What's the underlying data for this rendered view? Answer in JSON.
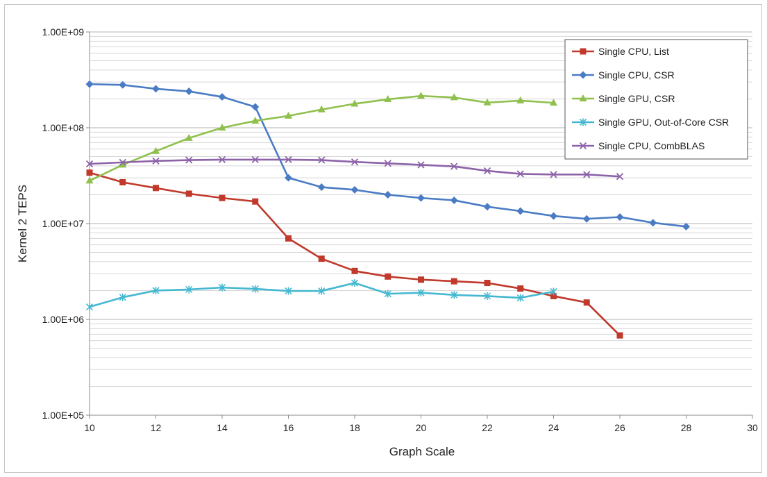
{
  "chart_data": {
    "type": "line",
    "xlabel": "Graph Scale",
    "ylabel": "Kernel 2 TEPS",
    "xlim": [
      10,
      30
    ],
    "ylim": [
      100000,
      1000000000
    ],
    "yscale": "log",
    "grid": true,
    "legend_position": "top-right",
    "x_ticks": [
      "10",
      "12",
      "14",
      "16",
      "18",
      "20",
      "22",
      "24",
      "26",
      "28",
      "30"
    ],
    "y_ticks": [
      "1.00E+05",
      "1.00E+06",
      "1.00E+07",
      "1.00E+08",
      "1.00E+09"
    ],
    "series": [
      {
        "name": "Single CPU, List",
        "color": "#c0392b",
        "marker": "square",
        "x": [
          10,
          11,
          12,
          13,
          14,
          15,
          16,
          17,
          18,
          19,
          20,
          21,
          22,
          23,
          24,
          25,
          26
        ],
        "y": [
          34000000,
          27000000,
          23500000,
          20500000,
          18500000,
          17000000,
          7000000,
          4300000,
          3200000,
          2800000,
          2600000,
          2500000,
          2400000,
          2100000,
          1750000,
          1500000,
          680000
        ]
      },
      {
        "name": "Single CPU, CSR",
        "color": "#4a7cc4",
        "marker": "diamond",
        "x": [
          10,
          11,
          12,
          13,
          14,
          15,
          16,
          17,
          18,
          19,
          20,
          21,
          22,
          23,
          24,
          25,
          26,
          27,
          28
        ],
        "y": [
          285000000,
          280000000,
          255000000,
          240000000,
          210000000,
          165000000,
          30000000,
          24000000,
          22500000,
          20000000,
          18500000,
          17500000,
          15000000,
          13500000,
          12000000,
          11200000,
          11700000,
          10200000,
          9300000
        ]
      },
      {
        "name": "Single GPU, CSR",
        "color": "#8fc04d",
        "marker": "triangle",
        "x": [
          10,
          11,
          12,
          13,
          14,
          15,
          16,
          17,
          18,
          19,
          20,
          21,
          22,
          23,
          24
        ],
        "y": [
          28000000,
          41000000,
          57000000,
          78000000,
          100000000,
          118000000,
          133000000,
          155000000,
          178000000,
          198000000,
          215000000,
          207000000,
          183000000,
          192000000,
          182000000
        ]
      },
      {
        "name": "Single GPU, Out-of-Core CSR",
        "color": "#45b8d1",
        "marker": "star",
        "x": [
          10,
          11,
          12,
          13,
          14,
          15,
          16,
          17,
          18,
          19,
          20,
          21,
          22,
          23,
          24
        ],
        "y": [
          1350000,
          1700000,
          2000000,
          2050000,
          2150000,
          2080000,
          1980000,
          1980000,
          2400000,
          1850000,
          1900000,
          1800000,
          1750000,
          1680000,
          1950000
        ]
      },
      {
        "name": "Single CPU, CombBLAS",
        "color": "#8c62a8",
        "marker": "x",
        "x": [
          10,
          11,
          12,
          13,
          14,
          15,
          16,
          17,
          18,
          19,
          20,
          21,
          22,
          23,
          24,
          25,
          26
        ],
        "y": [
          42000000,
          43500000,
          45000000,
          46000000,
          46500000,
          46500000,
          46500000,
          46000000,
          44000000,
          42500000,
          41000000,
          39500000,
          35500000,
          33000000,
          32500000,
          32500000,
          31000000
        ]
      }
    ]
  }
}
